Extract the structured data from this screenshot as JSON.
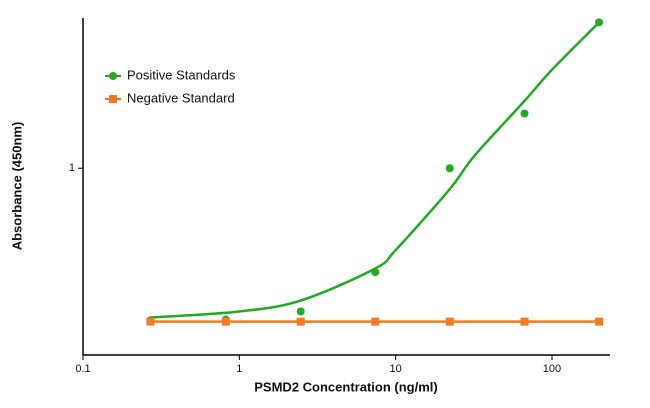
{
  "chart_data": {
    "type": "scatter",
    "x_label": "PSMD2 Concentration (ng/ml)",
    "y_label": "Absorbance (450nm)",
    "x_log": true,
    "y_log": true,
    "xlim": [
      0.1,
      235
    ],
    "ylim": [
      0.245,
      3.1
    ],
    "xticks": [
      0.1,
      1,
      10,
      100
    ],
    "yticks": [
      1
    ],
    "legend_position": "upper left",
    "series": [
      {
        "name": "Positive Standards",
        "color": "#22aa22",
        "marker": "circle",
        "x": [
          0.27,
          0.82,
          2.47,
          7.4,
          22.2,
          66.7,
          200
        ],
        "values": [
          0.318,
          0.32,
          0.34,
          0.457,
          1.0,
          1.51,
          3.0
        ],
        "fit": {
          "x": [
            0.27,
            1,
            2.5,
            7.4,
            10,
            22,
            32,
            66,
            100,
            200
          ],
          "values": [
            0.325,
            0.34,
            0.37,
            0.47,
            0.54,
            0.85,
            1.1,
            1.65,
            2.1,
            3.0
          ]
        }
      },
      {
        "name": "Negative Standard",
        "color": "#f47b20",
        "marker": "square",
        "x": [
          0.27,
          0.82,
          2.47,
          7.4,
          22.2,
          66.7,
          200
        ],
        "values": [
          0.315,
          0.315,
          0.315,
          0.315,
          0.315,
          0.315,
          0.315
        ],
        "line": true
      }
    ]
  }
}
